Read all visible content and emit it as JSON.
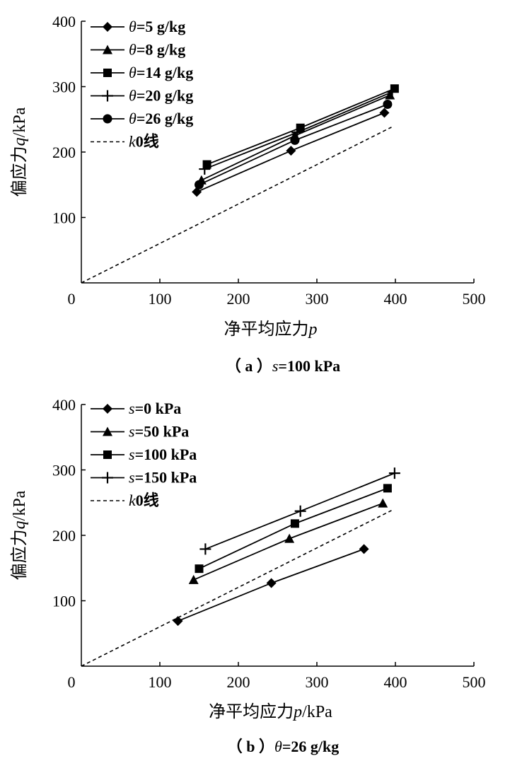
{
  "chart_data": [
    {
      "type": "line",
      "caption": "（ a ）s=100 kPa",
      "xlabel": "净平均应力p",
      "ylabel": "偏应力q/kPa",
      "xlim": [
        0,
        500
      ],
      "ylim": [
        0,
        400
      ],
      "xticks": [
        "0",
        "100",
        "200",
        "300",
        "400",
        "500"
      ],
      "yticks": [
        "100",
        "200",
        "300",
        "400"
      ],
      "legend_position": "top-left",
      "series": [
        {
          "name": "θ=5 g/kg",
          "marker": "diamond",
          "x": [
            147,
            267,
            386
          ],
          "y": [
            139,
            202,
            260
          ]
        },
        {
          "name": "θ=8 g/kg",
          "marker": "triangle",
          "x": [
            153,
            272,
            393
          ],
          "y": [
            157,
            225,
            287
          ]
        },
        {
          "name": "θ=14 g/kg",
          "marker": "square",
          "x": [
            160,
            279,
            399
          ],
          "y": [
            181,
            237,
            297
          ]
        },
        {
          "name": "θ=20 g/kg",
          "marker": "plus",
          "x": [
            157,
            275,
            396
          ],
          "y": [
            174,
            230,
            292
          ]
        },
        {
          "name": "θ=26 g/kg",
          "marker": "circle",
          "x": [
            150,
            272,
            390
          ],
          "y": [
            150,
            218,
            273
          ]
        },
        {
          "name": "k0线",
          "marker": "none",
          "style": "dashed",
          "x": [
            0,
            395
          ],
          "y": [
            0,
            238
          ]
        }
      ]
    },
    {
      "type": "line",
      "caption": "（ b ）θ=26 g/kg",
      "xlabel": "净平均应力p/kPa",
      "ylabel": "偏应力q/kPa",
      "xlim": [
        0,
        500
      ],
      "ylim": [
        0,
        400
      ],
      "xticks": [
        "0",
        "100",
        "200",
        "300",
        "400",
        "500"
      ],
      "yticks": [
        "100",
        "200",
        "300",
        "400"
      ],
      "legend_position": "top-left",
      "series": [
        {
          "name": "s=0 kPa",
          "marker": "diamond",
          "x": [
            123,
            242,
            360
          ],
          "y": [
            69,
            127,
            179
          ]
        },
        {
          "name": "s=50 kPa",
          "marker": "triangle",
          "x": [
            143,
            265,
            384
          ],
          "y": [
            132,
            195,
            249
          ]
        },
        {
          "name": "s=100 kPa",
          "marker": "square",
          "x": [
            150,
            272,
            390
          ],
          "y": [
            149,
            218,
            272
          ]
        },
        {
          "name": "s=150 kPa",
          "marker": "plus",
          "x": [
            158,
            279,
            399
          ],
          "y": [
            179,
            237,
            295
          ]
        },
        {
          "name": "k0线",
          "marker": "none",
          "style": "dashed",
          "x": [
            0,
            395
          ],
          "y": [
            0,
            238
          ]
        }
      ]
    }
  ]
}
